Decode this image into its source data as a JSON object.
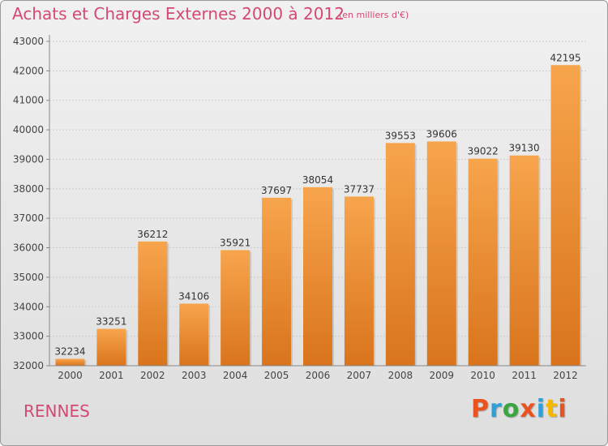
{
  "header": {
    "title": "Achats et Charges Externes 2000 à 2012",
    "subtitle": "(en milliers d'€)"
  },
  "footer": {
    "city": "RENNES",
    "logo": "Proxiti"
  },
  "colors": {
    "bar_light": "#f7a54d",
    "bar_dark": "#d9741c",
    "title": "#d24a72",
    "grid": "#cccccc",
    "logo": [
      "#e8531f",
      "#2f9fd8",
      "#3aa53f",
      "#e8531f",
      "#2f9fd8",
      "#f5b800",
      "#e8531f"
    ]
  },
  "chart_data": {
    "type": "bar",
    "title": "Achats et Charges Externes 2000 à 2012",
    "subtitle": "(en milliers d'€)",
    "categories": [
      "2000",
      "2001",
      "2002",
      "2003",
      "2004",
      "2005",
      "2006",
      "2007",
      "2008",
      "2009",
      "2010",
      "2011",
      "2012"
    ],
    "values": [
      32234,
      33251,
      36212,
      34106,
      35921,
      37697,
      38054,
      37737,
      39553,
      39606,
      39022,
      39130,
      42195
    ],
    "ylim": [
      32000,
      43000
    ],
    "yticks": [
      32000,
      33000,
      34000,
      35000,
      36000,
      37000,
      38000,
      39000,
      40000,
      41000,
      42000,
      43000
    ],
    "grid": true,
    "xlabel": "",
    "ylabel": ""
  }
}
